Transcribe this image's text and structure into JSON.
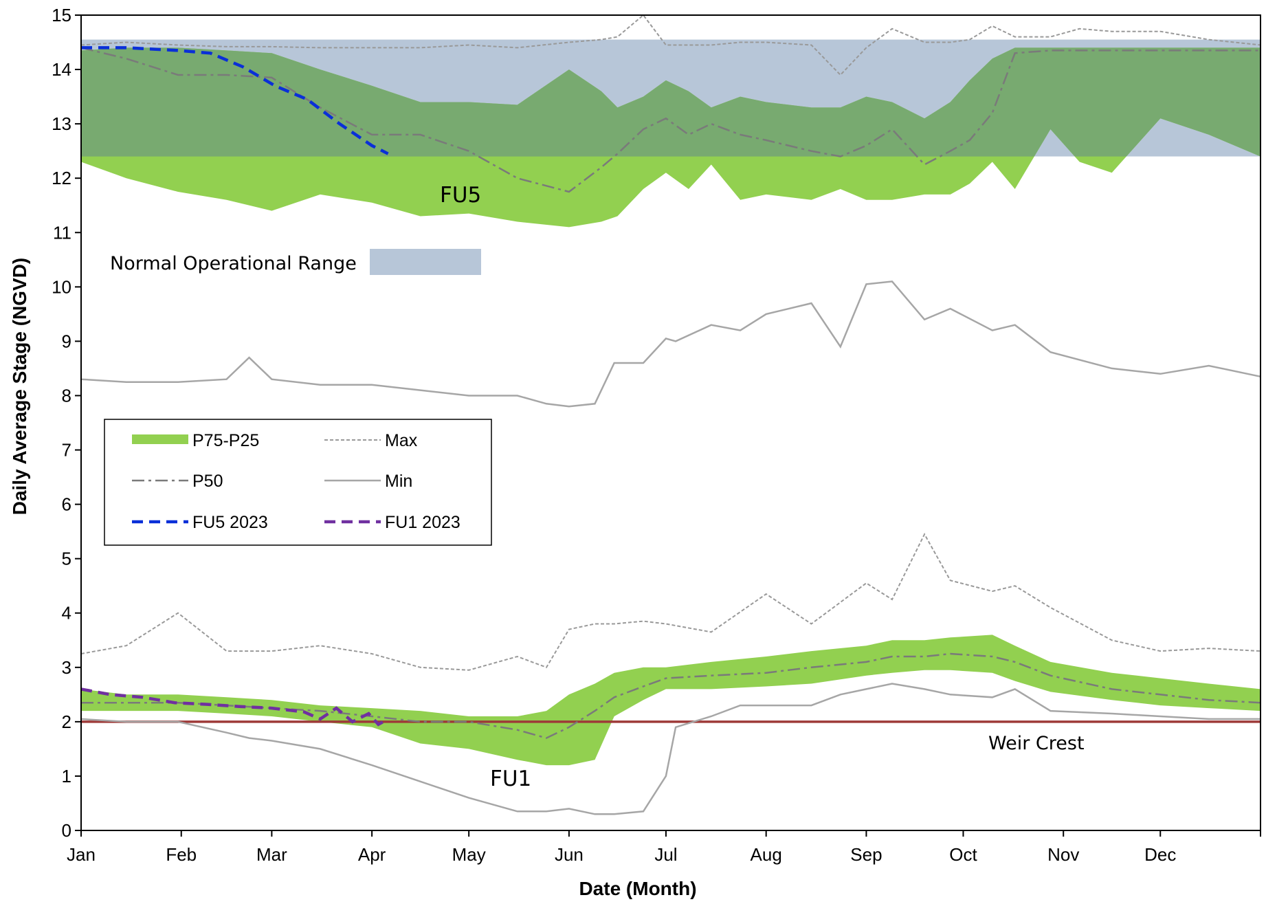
{
  "chart_data": {
    "type": "line",
    "xlabel": "Date (Month)",
    "ylabel": "Daily Average Stage (NGVD)",
    "x_ticks": [
      "Jan",
      "Feb",
      "Mar",
      "Apr",
      "May",
      "Jun",
      "Jul",
      "Aug",
      "Sep",
      "Oct",
      "Nov",
      "Dec"
    ],
    "xlim": [
      1,
      366
    ],
    "ylim": [
      0,
      15
    ],
    "y_ticks": [
      0,
      1,
      2,
      3,
      4,
      5,
      6,
      7,
      8,
      9,
      10,
      11,
      12,
      13,
      14,
      15
    ],
    "grid": false,
    "legend_placement": "center-left",
    "legend": {
      "band": "P75-P25",
      "max": "Max",
      "p50": "P50",
      "min": "Min",
      "fu5_2023": "FU5 2023",
      "fu1_2023": "FU1 2023"
    },
    "colors": {
      "band": "#92d050",
      "band_overlap": "#78aa70",
      "operational_range": "#b7c6d8",
      "max_line": "#999999",
      "p50_line": "#7a7a7a",
      "min_line": "#a6a6a6",
      "fu5_2023": "#0a2fd8",
      "fu1_2023": "#7030a0",
      "weir": "#9e3a38"
    },
    "operational_range": {
      "label": "Normal Operational Range",
      "y_min": 12.4,
      "y_max": 14.55
    },
    "weir_crest": {
      "label": "Weir Crest",
      "y": 2.0
    },
    "annotations": [
      {
        "text": "FU5",
        "day": 125,
        "y": 11.7
      },
      {
        "text": "FU1",
        "day": 135,
        "y": 0.95
      }
    ],
    "series": {
      "FU5": {
        "days": [
          1,
          15,
          31,
          46,
          60,
          75,
          91,
          106,
          121,
          136,
          152,
          162,
          167,
          175,
          182,
          189,
          196,
          205,
          213,
          227,
          236,
          244,
          252,
          262,
          270,
          276,
          283,
          290,
          301,
          310,
          320,
          335,
          350,
          366
        ],
        "max": [
          14.45,
          14.5,
          14.45,
          14.42,
          14.42,
          14.4,
          14.4,
          14.4,
          14.45,
          14.4,
          14.5,
          14.55,
          14.6,
          15.0,
          14.45,
          14.45,
          14.45,
          14.5,
          14.5,
          14.45,
          13.9,
          14.4,
          14.75,
          14.5,
          14.5,
          14.55,
          14.8,
          14.6,
          14.6,
          14.75,
          14.7,
          14.7,
          14.55,
          14.45
        ],
        "p75": [
          14.35,
          14.4,
          14.4,
          14.35,
          14.3,
          14.0,
          13.7,
          13.4,
          13.4,
          13.35,
          14.0,
          13.6,
          13.3,
          13.5,
          13.8,
          13.6,
          13.3,
          13.5,
          13.4,
          13.3,
          13.3,
          13.5,
          13.4,
          13.1,
          13.4,
          13.8,
          14.2,
          14.4,
          14.4,
          14.4,
          14.4,
          14.4,
          14.4,
          14.4
        ],
        "p50": [
          14.4,
          14.2,
          13.9,
          13.9,
          13.85,
          13.3,
          12.8,
          12.8,
          12.5,
          12.0,
          11.75,
          12.2,
          12.45,
          12.9,
          13.1,
          12.8,
          13.0,
          12.8,
          12.7,
          12.5,
          12.4,
          12.6,
          12.9,
          12.25,
          12.5,
          12.7,
          13.2,
          14.3,
          14.35,
          14.35,
          14.35,
          14.35,
          14.35,
          14.35
        ],
        "p25": [
          12.3,
          12.0,
          11.75,
          11.6,
          11.4,
          11.7,
          11.55,
          11.3,
          11.35,
          11.2,
          11.1,
          11.2,
          11.3,
          11.8,
          12.1,
          11.8,
          12.25,
          11.6,
          11.7,
          11.6,
          11.8,
          11.6,
          11.6,
          11.7,
          11.7,
          11.9,
          12.3,
          11.8,
          12.9,
          12.3,
          12.1,
          13.1,
          12.8,
          12.4
        ]
      },
      "FU1": {
        "days": [
          1,
          15,
          31,
          46,
          60,
          75,
          91,
          106,
          121,
          136,
          145,
          152,
          160,
          166,
          175,
          182,
          196,
          213,
          227,
          244,
          252,
          262,
          270,
          283,
          290,
          301,
          320,
          335,
          350,
          366
        ],
        "max": [
          3.25,
          3.4,
          4.0,
          3.3,
          3.3,
          3.4,
          3.25,
          3.0,
          2.95,
          3.2,
          3.0,
          3.7,
          3.8,
          3.8,
          3.85,
          3.8,
          3.65,
          4.35,
          3.8,
          4.55,
          4.25,
          5.45,
          4.6,
          4.4,
          4.5,
          4.1,
          3.5,
          3.3,
          3.35,
          3.3
        ],
        "p75": [
          2.6,
          2.5,
          2.5,
          2.45,
          2.4,
          2.3,
          2.25,
          2.2,
          2.1,
          2.1,
          2.2,
          2.5,
          2.7,
          2.9,
          3.0,
          3.0,
          3.1,
          3.2,
          3.3,
          3.4,
          3.5,
          3.5,
          3.55,
          3.6,
          3.4,
          3.1,
          2.9,
          2.8,
          2.7,
          2.6
        ],
        "p50": [
          2.35,
          2.35,
          2.35,
          2.3,
          2.25,
          2.2,
          2.1,
          2.0,
          2.0,
          1.85,
          1.7,
          1.9,
          2.2,
          2.45,
          2.65,
          2.8,
          2.85,
          2.9,
          3.0,
          3.1,
          3.2,
          3.2,
          3.25,
          3.2,
          3.1,
          2.85,
          2.6,
          2.5,
          2.4,
          2.35
        ],
        "p25": [
          2.2,
          2.2,
          2.2,
          2.15,
          2.1,
          2.0,
          1.9,
          1.6,
          1.5,
          1.3,
          1.2,
          1.2,
          1.3,
          2.1,
          2.4,
          2.6,
          2.6,
          2.65,
          2.7,
          2.85,
          2.9,
          2.95,
          2.95,
          2.9,
          2.75,
          2.55,
          2.4,
          2.3,
          2.25,
          2.2
        ]
      },
      "Min": {
        "days": [
          1,
          15,
          31,
          46,
          53,
          60,
          75,
          91,
          106,
          121,
          136,
          145,
          152,
          160,
          166,
          175,
          182,
          185,
          196,
          205,
          213,
          227,
          236,
          244,
          252,
          262,
          270,
          283,
          290,
          301,
          320,
          335,
          350,
          366
        ],
        "fu5": [
          8.3,
          8.25,
          8.25,
          8.3,
          8.7,
          8.3,
          8.2,
          8.2,
          8.1,
          8.0,
          8.0,
          7.85,
          7.8,
          7.85,
          8.6,
          8.6,
          9.05,
          9.0,
          9.3,
          9.2,
          9.5,
          9.7,
          8.9,
          10.05,
          10.1,
          9.4,
          9.6,
          9.2,
          9.3,
          8.8,
          8.5,
          8.4,
          8.55,
          8.35
        ],
        "fu1": [
          2.05,
          2.0,
          2.0,
          1.8,
          1.7,
          1.65,
          1.5,
          1.2,
          0.9,
          0.6,
          0.35,
          0.35,
          0.4,
          0.3,
          0.3,
          0.35,
          1.0,
          1.9,
          2.1,
          2.3,
          2.3,
          2.3,
          2.5,
          2.6,
          2.7,
          2.6,
          2.5,
          2.45,
          2.6,
          2.2,
          2.15,
          2.1,
          2.05,
          2.05
        ]
      },
      "FU5 2023": {
        "days": [
          1,
          15,
          31,
          41,
          51,
          61,
          71,
          81,
          86,
          91,
          96
        ],
        "values": [
          14.4,
          14.4,
          14.35,
          14.3,
          14.05,
          13.7,
          13.45,
          13.0,
          12.8,
          12.6,
          12.45
        ]
      },
      "FU1 2023": {
        "days": [
          1,
          10,
          20,
          30,
          40,
          50,
          60,
          70,
          75,
          80,
          85,
          90,
          93,
          96
        ],
        "values": [
          2.6,
          2.5,
          2.45,
          2.35,
          2.32,
          2.28,
          2.25,
          2.18,
          2.05,
          2.25,
          2.0,
          2.15,
          1.95,
          2.05
        ]
      }
    }
  }
}
